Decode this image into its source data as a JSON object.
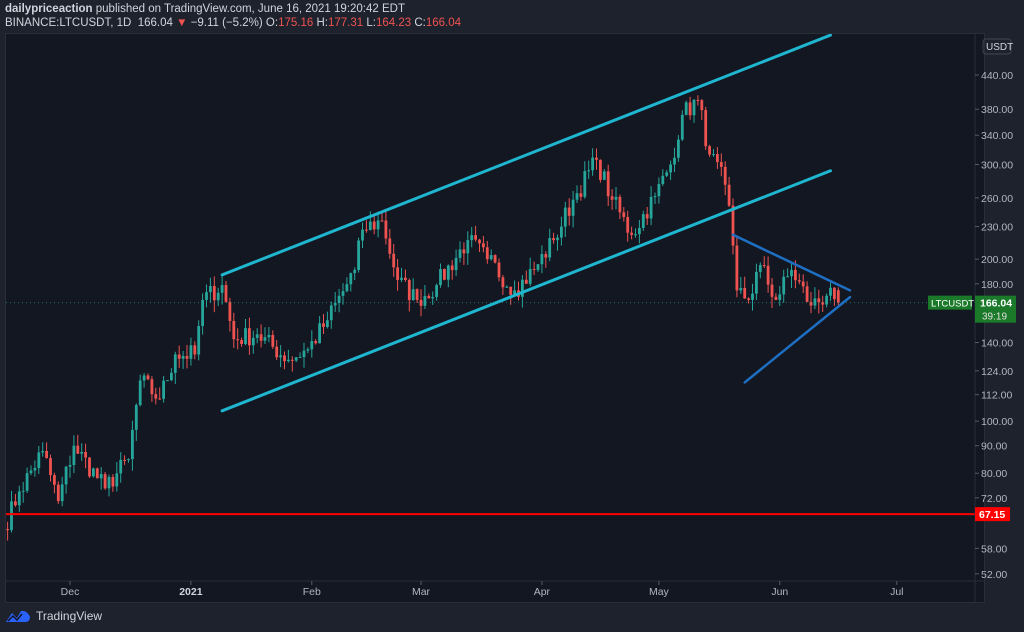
{
  "header": {
    "author": "dailypriceaction",
    "published_text": "published on TradingView.com, June 16, 2021 19:20:42 EDT",
    "symbol": "BINANCE:LTCUSDT, 1D",
    "last": "166.04",
    "direction": "down",
    "change": "−9.11 (−5.2%)",
    "open_label": "O:",
    "open": "175.16",
    "high_label": "H:",
    "high": "177.31",
    "low_label": "L:",
    "low": "164.23",
    "close_label": "C:",
    "close": "166.04"
  },
  "footer": {
    "brand": "TradingView"
  },
  "colors": {
    "up": "#26a69a",
    "down": "#ef5350",
    "channel": "#1fb6d0",
    "triangle": "#1e6fc4",
    "support": "#ff0000",
    "background": "#131722"
  },
  "chart_data": {
    "type": "candlestick",
    "scale": "log",
    "currency_label": "USDT",
    "ylim": [
      50,
      560
    ],
    "y_ticks": [
      "440.00",
      "380.00",
      "340.00",
      "300.00",
      "260.00",
      "230.00",
      "200.00",
      "180.00",
      "140.00",
      "124.00",
      "112.00",
      "100.00",
      "90.00",
      "80.00",
      "72.00",
      "58.00",
      "52.00"
    ],
    "x_ticks": [
      {
        "label": "Dec",
        "date": "2020-12-01"
      },
      {
        "label": "2021",
        "date": "2021-01-01"
      },
      {
        "label": "Feb",
        "date": "2021-02-01"
      },
      {
        "label": "Mar",
        "date": "2021-03-01"
      },
      {
        "label": "Apr",
        "date": "2021-04-01"
      },
      {
        "label": "May",
        "date": "2021-05-01"
      },
      {
        "label": "Jun",
        "date": "2021-06-01"
      },
      {
        "label": "Jul",
        "date": "2021-07-01"
      }
    ],
    "approx_closes": [
      [
        "2020-11-14",
        63
      ],
      [
        "2020-11-18",
        74
      ],
      [
        "2020-11-24",
        88
      ],
      [
        "2020-11-28",
        71
      ],
      [
        "2020-12-02",
        90
      ],
      [
        "2020-12-10",
        75
      ],
      [
        "2020-12-16",
        85
      ],
      [
        "2020-12-19",
        119
      ],
      [
        "2020-12-24",
        110
      ],
      [
        "2020-12-28",
        133
      ],
      [
        "2021-01-02",
        133
      ],
      [
        "2021-01-04",
        168
      ],
      [
        "2021-01-09",
        179
      ],
      [
        "2021-01-12",
        142
      ],
      [
        "2021-01-18",
        145
      ],
      [
        "2021-01-26",
        130
      ],
      [
        "2021-01-31",
        136
      ],
      [
        "2021-02-05",
        154
      ],
      [
        "2021-02-12",
        191
      ],
      [
        "2021-02-14",
        227
      ],
      [
        "2021-02-19",
        236
      ],
      [
        "2021-02-23",
        183
      ],
      [
        "2021-02-28",
        168
      ],
      [
        "2021-03-05",
        179
      ],
      [
        "2021-03-13",
        217
      ],
      [
        "2021-03-18",
        200
      ],
      [
        "2021-03-25",
        175
      ],
      [
        "2021-03-30",
        191
      ],
      [
        "2021-04-04",
        217
      ],
      [
        "2021-04-09",
        258
      ],
      [
        "2021-04-15",
        306
      ],
      [
        "2021-04-19",
        258
      ],
      [
        "2021-04-24",
        222
      ],
      [
        "2021-04-30",
        262
      ],
      [
        "2021-05-04",
        300
      ],
      [
        "2021-05-07",
        371
      ],
      [
        "2021-05-11",
        395
      ],
      [
        "2021-05-14",
        313
      ],
      [
        "2021-05-18",
        275
      ],
      [
        "2021-05-20",
        212
      ],
      [
        "2021-05-21",
        175
      ],
      [
        "2021-05-24",
        168
      ],
      [
        "2021-05-27",
        195
      ],
      [
        "2021-05-31",
        168
      ],
      [
        "2021-06-04",
        191
      ],
      [
        "2021-06-09",
        164
      ],
      [
        "2021-06-13",
        171
      ],
      [
        "2021-06-14",
        177
      ],
      [
        "2021-06-16",
        166.04
      ]
    ],
    "last_price": {
      "symbol": "LTCUSDT",
      "value": "166.04",
      "countdown": "39:19"
    },
    "drawings": {
      "channel_upper": [
        [
          "2021-01-09",
          187
        ],
        [
          "2021-06-14",
          522
        ]
      ],
      "channel_lower": [
        [
          "2021-01-09",
          104.5
        ],
        [
          "2021-06-14",
          292
        ]
      ],
      "triangle_upper": [
        [
          "2021-05-20",
          222
        ],
        [
          "2021-06-19",
          175
        ]
      ],
      "triangle_lower": [
        [
          "2021-05-23",
          118
        ],
        [
          "2021-06-19",
          170
        ]
      ],
      "support": {
        "price": 67.15,
        "label": "67.15"
      }
    }
  }
}
